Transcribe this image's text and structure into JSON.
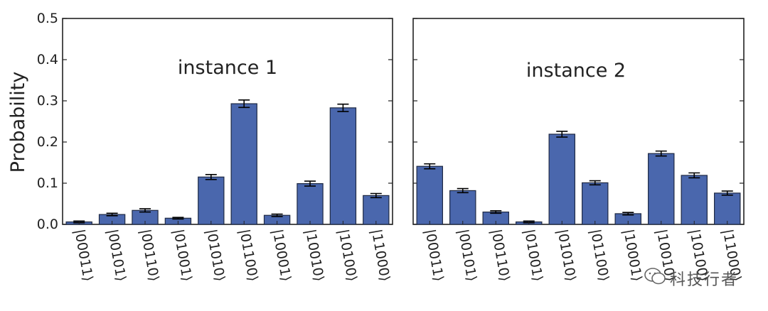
{
  "figure": {
    "ylabel": "Probability",
    "colors": {
      "bar": "#4a67ad",
      "bar_edge": "#1f2a44",
      "axis": "#222222"
    },
    "watermark": {
      "icon": "wechat-icon",
      "text": "科技行者"
    }
  },
  "chart_data": [
    {
      "type": "bar",
      "title": "instance 1",
      "categories": [
        "|00011⟩",
        "|00101⟩",
        "|00110⟩",
        "|01001⟩",
        "|01010⟩",
        "|01100⟩",
        "|10001⟩",
        "|10010⟩",
        "|10100⟩",
        "|11000⟩"
      ],
      "values": [
        0.006,
        0.024,
        0.034,
        0.015,
        0.115,
        0.293,
        0.022,
        0.099,
        0.283,
        0.07
      ],
      "errors": [
        0.002,
        0.003,
        0.004,
        0.002,
        0.006,
        0.009,
        0.003,
        0.006,
        0.009,
        0.005
      ],
      "ylabel": "Probability",
      "ylim": [
        0,
        0.5
      ],
      "yticks": [
        "0.0",
        "0.1",
        "0.2",
        "0.3",
        "0.4",
        "0.5"
      ],
      "show_y_tick_labels": true
    },
    {
      "type": "bar",
      "title": "instance 2",
      "categories": [
        "|00011⟩",
        "|00101⟩",
        "|00110⟩",
        "|01001⟩",
        "|01010⟩",
        "|01100⟩",
        "|10001⟩",
        "|10010⟩",
        "|10100⟩",
        "|11000⟩"
      ],
      "values": [
        0.141,
        0.082,
        0.03,
        0.006,
        0.219,
        0.101,
        0.026,
        0.172,
        0.119,
        0.076
      ],
      "errors": [
        0.006,
        0.005,
        0.003,
        0.002,
        0.007,
        0.005,
        0.003,
        0.006,
        0.006,
        0.005
      ],
      "ylim": [
        0,
        0.5
      ],
      "yticks": [
        "0.0",
        "0.1",
        "0.2",
        "0.3",
        "0.4",
        "0.5"
      ],
      "show_y_tick_labels": false
    }
  ]
}
